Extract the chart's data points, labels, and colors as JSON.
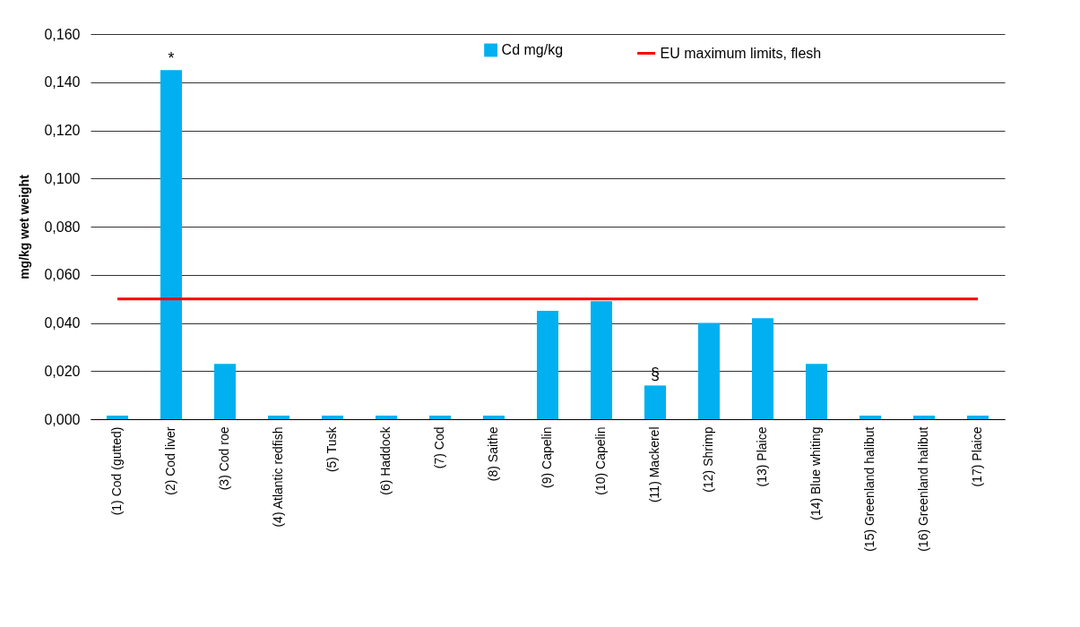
{
  "chart_data": {
    "type": "bar",
    "categories": [
      "(1) Cod (gutted)",
      "(2) Cod liver",
      "(3) Cod roe",
      "(4) Atlantic redfish",
      "(5) Tusk",
      "(6) Haddock",
      "(7) Cod",
      "(8) Saithe",
      "(9) Capelin",
      "(10) Capelin",
      "(11) Mackerel",
      "(12) Shrimp",
      "(13) Plaice",
      "(14) Blue whiting",
      "(15) Greenland halibut",
      "(16) Greenland halibut",
      "(17) Plaice"
    ],
    "ylabel": "mg/kg wet weight",
    "series": [
      {
        "name": "Cd mg/kg",
        "color": "#00b0f0",
        "values": [
          0.0015,
          0.145,
          0.023,
          0.0015,
          0.0015,
          0.0015,
          0.0015,
          0.0015,
          0.045,
          0.049,
          0.014,
          0.04,
          0.042,
          0.023,
          0.0015,
          0.0015,
          0.0015
        ]
      },
      {
        "name": "EU maximum limits, flesh",
        "type": "line",
        "color": "#ff0000",
        "marker": "none",
        "values": [
          0.05,
          0.05,
          0.05,
          0.05,
          0.05,
          0.05,
          0.05,
          0.05,
          0.05,
          0.05,
          0.05,
          0.05,
          0.05,
          0.05,
          0.05,
          0.05,
          0.05
        ]
      }
    ],
    "ylim": [
      0,
      0.16
    ],
    "yticks": [
      {
        "value": 0,
        "label": "0,000"
      },
      {
        "value": 0.02,
        "label": "0,020"
      },
      {
        "value": 0.04,
        "label": "0,040"
      },
      {
        "value": 0.06,
        "label": "0,060"
      },
      {
        "value": 0.08,
        "label": "0,080"
      },
      {
        "value": 0.1,
        "label": "0,100"
      },
      {
        "value": 0.12,
        "label": "0,120"
      },
      {
        "value": 0.14,
        "label": "0,140"
      },
      {
        "value": 0.16,
        "label": "0,160"
      }
    ],
    "annotations": [
      {
        "text": "*",
        "x": "(2) Cod liver",
        "y": 0.145
      },
      {
        "text": "§",
        "x": "(11) Mackerel",
        "y": 0.014
      }
    ],
    "grid": "y",
    "legend": "top"
  }
}
